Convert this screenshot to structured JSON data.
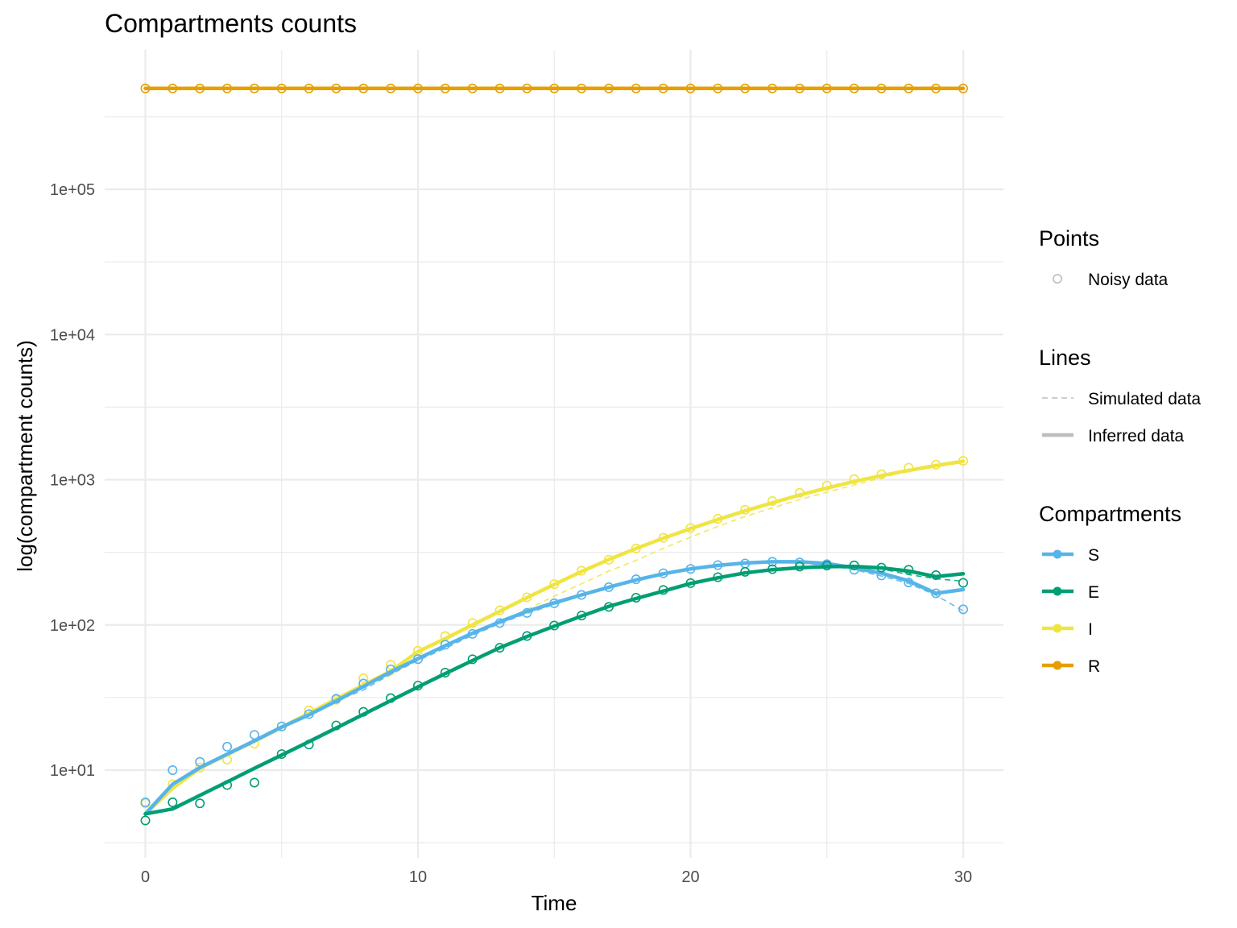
{
  "chart_data": {
    "type": "line",
    "title": "Compartments counts",
    "xlabel": "Time",
    "ylabel": "log(compartment counts)",
    "y_scale": "log10",
    "xlim": [
      -1.5,
      31.5
    ],
    "ylim": [
      3.0,
      1000000
    ],
    "x_ticks": [
      0,
      10,
      20,
      30
    ],
    "x_tick_labels": [
      "0",
      "10",
      "20",
      "30"
    ],
    "y_ticks": [
      10,
      100,
      1000,
      10000,
      100000
    ],
    "y_tick_labels": [
      "1e+01",
      "1e+02",
      "1e+03",
      "1e+04",
      "1e+05"
    ],
    "grid": true,
    "legend_position": "right",
    "legend": {
      "points_title": "Points",
      "points_items": [
        {
          "label": "Noisy data",
          "color": "#bdbdbd"
        }
      ],
      "lines_title": "Lines",
      "lines_items": [
        {
          "label": "Simulated data",
          "style": "dashed",
          "color": "#bdbdbd"
        },
        {
          "label": "Inferred data",
          "style": "solid",
          "color": "#bdbdbd"
        }
      ],
      "compartments_title": "Compartments",
      "compartments_items": [
        {
          "label": "S",
          "color": "#56B4E9"
        },
        {
          "label": "E",
          "color": "#009E73"
        },
        {
          "label": "I",
          "color": "#F0E442"
        },
        {
          "label": "R",
          "color": "#E69F00"
        }
      ]
    },
    "x": [
      0,
      1,
      2,
      3,
      4,
      5,
      6,
      7,
      8,
      9,
      10,
      11,
      12,
      13,
      14,
      15,
      16,
      17,
      18,
      19,
      20,
      21,
      22,
      23,
      24,
      25,
      26,
      27,
      28,
      29,
      30
    ],
    "series": [
      {
        "name": "R",
        "color": "#E69F00",
        "simulated": [
          495000,
          495000,
          495000,
          495000,
          495000,
          495000,
          495000,
          495000,
          495000,
          495000,
          495000,
          495000,
          495000,
          495000,
          495000,
          495000,
          495000,
          495000,
          495000,
          495000,
          495000,
          495000,
          495000,
          495000,
          495000,
          495000,
          495000,
          495000,
          495000,
          495000,
          495000
        ],
        "inferred": [
          495000,
          495000,
          495000,
          495000,
          495000,
          495000,
          495000,
          495000,
          495000,
          495000,
          495000,
          495000,
          495000,
          495000,
          495000,
          495000,
          495000,
          495000,
          495000,
          495000,
          495000,
          495000,
          495000,
          495000,
          495000,
          495000,
          495000,
          495000,
          495000,
          495000,
          495000
        ],
        "noisy": [
          495000,
          495000,
          495000,
          495000,
          495000,
          495000,
          495000,
          495000,
          495000,
          495000,
          495000,
          495000,
          495000,
          495000,
          495000,
          495000,
          495000,
          495000,
          495000,
          495000,
          495000,
          495000,
          495000,
          495000,
          495000,
          495000,
          495000,
          495000,
          495000,
          495000,
          495000
        ]
      },
      {
        "name": "I",
        "color": "#F0E442",
        "simulated": [
          5.0,
          7.5,
          10.3,
          12.8,
          15.8,
          19.7,
          24.7,
          30.5,
          37.4,
          45.0,
          57.5,
          71.3,
          86.7,
          105,
          128,
          158,
          192,
          235,
          278,
          337,
          402,
          477,
          558,
          640,
          730,
          820,
          920,
          1030,
          1150,
          1260,
          1350
        ],
        "inferred": [
          5.0,
          7.5,
          10.3,
          12.8,
          15.8,
          19.7,
          24.7,
          30.9,
          38.6,
          48.0,
          65.5,
          80.4,
          100,
          124,
          154,
          190,
          233,
          282,
          336,
          395,
          460,
          532,
          610,
          694,
          784,
          877,
          972,
          1067,
          1160,
          1250,
          1340
        ],
        "noisy": [
          5.9,
          8.0,
          10.4,
          11.8,
          15.2,
          20.0,
          25.8,
          30.5,
          42.9,
          53.1,
          66.4,
          83.7,
          103,
          126,
          155,
          191,
          236,
          281,
          336,
          398,
          465,
          538,
          621,
          713,
          812,
          912,
          1010,
          1090,
          1210,
          1270,
          1350
        ]
      },
      {
        "name": "S",
        "color": "#56B4E9",
        "simulated": [
          5.0,
          8.0,
          10.4,
          12.9,
          15.9,
          19.8,
          24.0,
          30.0,
          35.6,
          45.8,
          56.9,
          69.0,
          84.7,
          102,
          120,
          138,
          159,
          180,
          203,
          222,
          241,
          255,
          265,
          270,
          267,
          257,
          240,
          217,
          193,
          160,
          125
        ],
        "inferred": [
          5.0,
          8.0,
          10.4,
          12.9,
          15.9,
          19.8,
          24.0,
          29.9,
          37.6,
          47.5,
          58.6,
          72.0,
          87.6,
          105,
          124,
          142,
          161,
          182,
          204,
          225,
          243,
          257,
          267,
          272,
          272,
          265,
          247,
          227,
          201,
          165,
          175
        ],
        "noisy": [
          6.0,
          10.0,
          11.4,
          14.5,
          17.5,
          20.0,
          24.3,
          31.0,
          39.5,
          49.4,
          58.1,
          73.0,
          86.7,
          103,
          121,
          141,
          161,
          182,
          206,
          227,
          243,
          258,
          265,
          272,
          269,
          262,
          240,
          219,
          196,
          165,
          128
        ]
      },
      {
        "name": "E",
        "color": "#009E73",
        "simulated": [
          5.0,
          5.4,
          6.7,
          8.3,
          10.3,
          12.7,
          15.7,
          19.5,
          24.2,
          30.1,
          37.4,
          46.2,
          56.8,
          69.6,
          83.1,
          98.0,
          115,
          134,
          152,
          171,
          193,
          211,
          228,
          240,
          248,
          255,
          250,
          243,
          222,
          208,
          200
        ],
        "inferred": [
          5.0,
          5.4,
          6.7,
          8.3,
          10.3,
          12.7,
          15.7,
          19.5,
          24.2,
          30.1,
          37.4,
          46.2,
          56.8,
          69.6,
          83.1,
          98.0,
          115,
          134,
          152,
          171,
          193,
          211,
          228,
          240,
          248,
          252,
          253,
          247,
          235,
          215,
          225
        ],
        "noisy": [
          4.5,
          6.0,
          5.9,
          7.9,
          8.2,
          12.9,
          15.0,
          20.3,
          25.2,
          31.3,
          38.2,
          46.9,
          58.0,
          69.6,
          83.9,
          99.0,
          116,
          133,
          154,
          174,
          194,
          213,
          232,
          242,
          252,
          256,
          257,
          248,
          240,
          220,
          195
        ]
      }
    ]
  }
}
